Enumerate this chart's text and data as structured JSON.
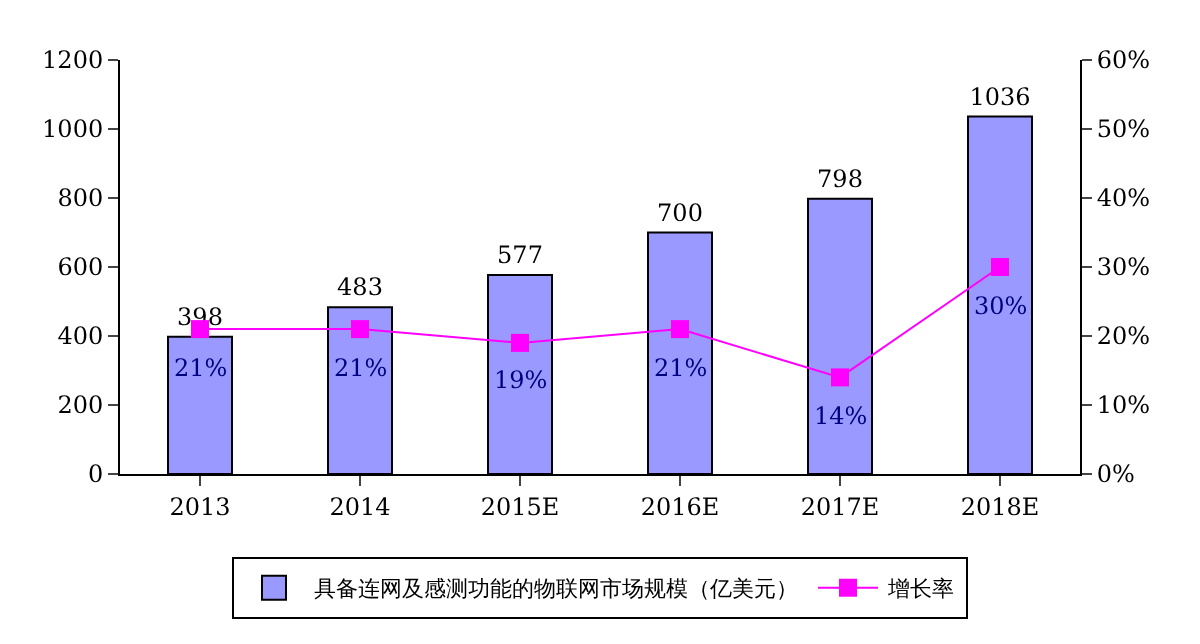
{
  "chart_data": {
    "type": "bar",
    "categories": [
      "2013",
      "2014",
      "2015E",
      "2016E",
      "2017E",
      "2018E"
    ],
    "series": [
      {
        "name": "具备连网及感测功能的物联网市场规模（亿美元）",
        "color": "#9999ff",
        "values": [
          398,
          483,
          577,
          700,
          798,
          1036
        ],
        "value_labels": [
          "398",
          "483",
          "577",
          "700",
          "798",
          "1036"
        ]
      },
      {
        "name": "增长率",
        "type": "line",
        "axis": "y2",
        "color": "#ff00ff",
        "marker": "square",
        "values": [
          21,
          21,
          19,
          21,
          14,
          30
        ],
        "value_labels": [
          "21%",
          "21%",
          "19%",
          "21%",
          "14%",
          "30%"
        ]
      }
    ],
    "ylim": [
      0,
      1200
    ],
    "yticks": [
      0,
      200,
      400,
      600,
      800,
      1000,
      1200
    ],
    "y2lim": [
      0,
      60
    ],
    "y2ticks": [
      {
        "value": 0,
        "label": "0%"
      },
      {
        "value": 10,
        "label": "10%"
      },
      {
        "value": 20,
        "label": "20%"
      },
      {
        "value": 30,
        "label": "30%"
      },
      {
        "value": 40,
        "label": "40%"
      },
      {
        "value": 50,
        "label": "50%"
      },
      {
        "value": 60,
        "label": "60%"
      }
    ],
    "legend": "bottom"
  }
}
